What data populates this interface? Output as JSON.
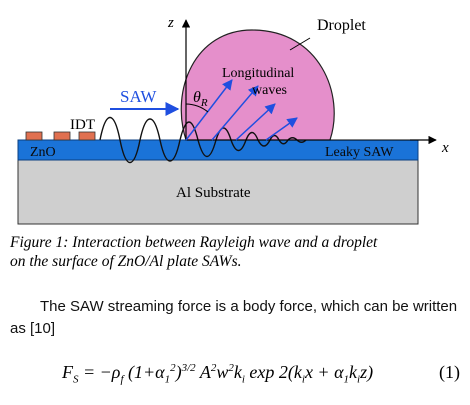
{
  "figure": {
    "axis_z": "z",
    "axis_x": "x",
    "droplet": "Droplet",
    "longitudinal_line1": "Longitudinal",
    "longitudinal_line2": "waves",
    "theta": "θ",
    "theta_sub": "R",
    "saw": "SAW",
    "idt": "IDT",
    "zno": "ZnO",
    "leaky_saw": "Leaky SAW",
    "substrate": "Al Substrate",
    "colors": {
      "droplet_fill": "#e58fcb",
      "zno_layer": "#1a73d8",
      "substrate": "#cfcfcf",
      "idt_electrode": "#e07050",
      "arrow_blue": "#1f4fe0"
    }
  },
  "caption": {
    "line1": "Figure 1: Interaction between Rayleigh wave and a droplet",
    "line2": "on the surface of ZnO/Al plate SAWs."
  },
  "body": {
    "text": "The SAW streaming force is a body force, which can be written as [10]"
  },
  "equation": {
    "lhs": "F",
    "lhs_sub": "S",
    "p1": " = −ρ",
    "p1_sub": "f",
    "p2": " (1+α",
    "p2_sub": "1",
    "p2_sup": "2",
    "p3": ")",
    "p3_sup": "3/2",
    "p4": " A",
    "p4_sup": "2",
    "p5": "w",
    "p5_sup": "2",
    "p6": "k",
    "p6_sub": "i",
    "p7": " exp 2(k",
    "p7_sub": "i",
    "p8": "x + α",
    "p8_sub": "1",
    "p9": "k",
    "p9_sub": "i",
    "p10": "z)",
    "number": "(1)"
  }
}
